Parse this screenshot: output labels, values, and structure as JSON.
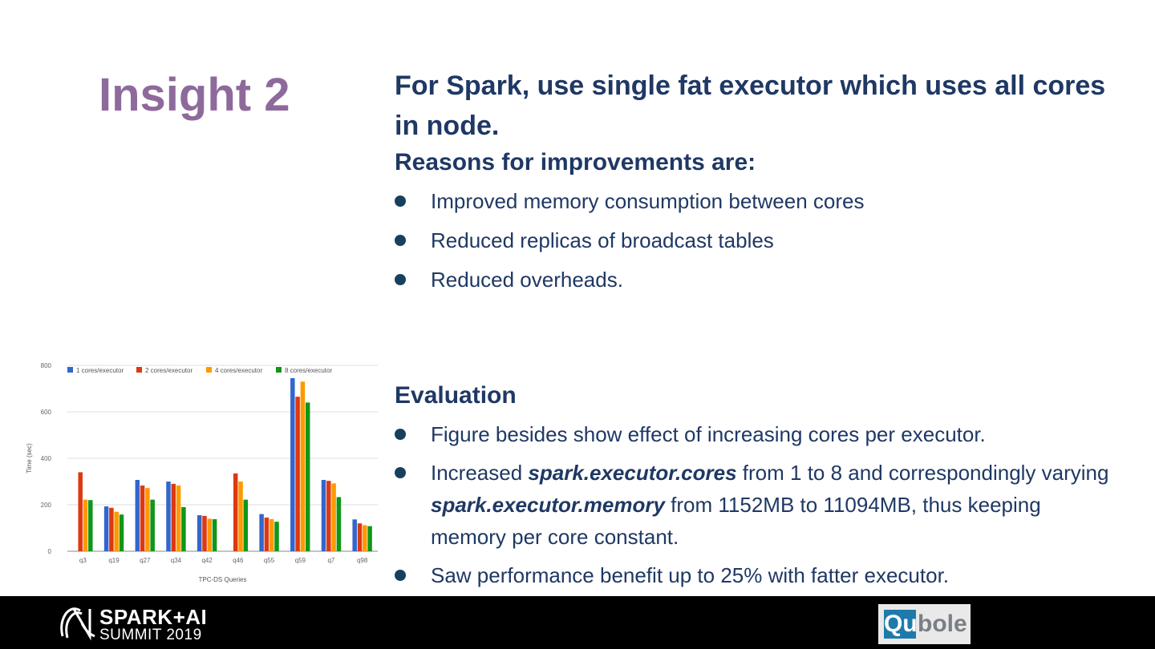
{
  "slide": {
    "title": "Insight 2",
    "headline": "For Spark, use single fat executor which uses all cores in node.",
    "reasons_heading": "Reasons for improvements are:",
    "reasons": [
      "Improved memory consumption between cores",
      "Reduced replicas of broadcast tables",
      "Reduced overheads."
    ],
    "evaluation_heading": "Evaluation",
    "evaluation": {
      "item1": "Figure besides show effect of increasing cores per executor.",
      "item2": {
        "t1": "Increased ",
        "b1": "spark.executor.cores",
        "t2": " from 1 to 8 and correspondingly varying ",
        "b2": "spark.executor.memory",
        "t3": " from 1152MB to 11094MB, thus keeping memory per core constant."
      },
      "item3": "Saw performance benefit up to 25% with fatter executor."
    }
  },
  "chart_data": {
    "type": "bar",
    "categories": [
      "q3",
      "q19",
      "q27",
      "q34",
      "q42",
      "q46",
      "q55",
      "q59",
      "q7",
      "q98"
    ],
    "series": [
      {
        "name": "1 cores/executor",
        "color": "#3366cc",
        "values": [
          0,
          193,
          307,
          300,
          155,
          0,
          160,
          745,
          307,
          137
        ]
      },
      {
        "name": "2 cores/executor",
        "color": "#dc3912",
        "values": [
          340,
          187,
          283,
          290,
          152,
          335,
          145,
          665,
          303,
          120
        ]
      },
      {
        "name": "4 cores/executor",
        "color": "#ff9900",
        "values": [
          222,
          170,
          272,
          283,
          140,
          300,
          138,
          730,
          292,
          112
        ]
      },
      {
        "name": "8 cores/executor",
        "color": "#109618",
        "values": [
          220,
          158,
          222,
          190,
          138,
          222,
          127,
          640,
          233,
          108
        ]
      }
    ],
    "xlabel": "TPC-DS Queries",
    "ylabel": "Time (sec)",
    "ylim": [
      0,
      800
    ],
    "yticks": [
      0,
      200,
      400,
      600,
      800
    ],
    "grid": true,
    "legend": "top"
  },
  "footer": {
    "event_line1": "SPARK+AI",
    "event_line2": "SUMMIT 2019",
    "sponsor_qu": "Qu",
    "sponsor_rest": "bole"
  }
}
